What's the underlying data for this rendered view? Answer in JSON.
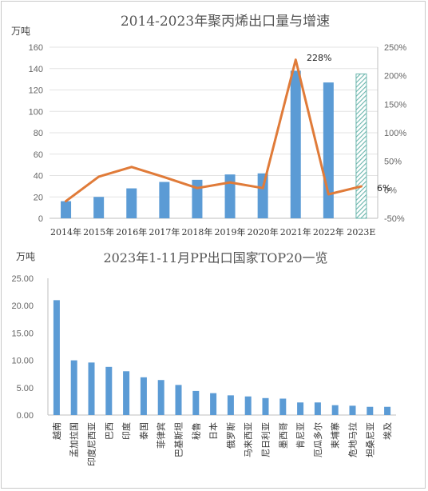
{
  "chart_data": [
    {
      "type": "bar+line",
      "title": "2014-2023年聚丙烯出口量与增速",
      "ylabel": "万吨",
      "categories": [
        "2014年",
        "2015年",
        "2016年",
        "2017年",
        "2018年",
        "2019年",
        "2020年",
        "2021年",
        "2022年",
        "2023E"
      ],
      "bar_values": [
        16,
        20,
        28,
        34,
        36,
        41,
        42,
        138,
        127,
        135
      ],
      "growth_pct": [
        -20,
        23,
        40,
        22,
        3,
        13,
        3,
        228,
        -8,
        6
      ],
      "ylim": [
        0,
        160
      ],
      "yticks": [
        "0",
        "20",
        "40",
        "60",
        "80",
        "100",
        "120",
        "140",
        "160"
      ],
      "y2lim": [
        -50,
        250
      ],
      "y2ticks": [
        "-50%",
        "0%",
        "50%",
        "100%",
        "150%",
        "200%",
        "250%"
      ],
      "annotations": [
        "228%",
        "6%"
      ],
      "colors": {
        "bar": "#5b9bd5",
        "line": "#e07b39",
        "hatch": "#6ab5ac"
      }
    },
    {
      "type": "bar",
      "title": "2023年1-11月PP出口国家TOP20一览",
      "ylabel": "万吨",
      "categories": [
        "越南",
        "孟加拉国",
        "印度尼西亚",
        "巴西",
        "印度",
        "泰国",
        "菲律宾",
        "巴基斯坦",
        "秘鲁",
        "日本",
        "俄罗斯",
        "马来西亚",
        "尼日利亚",
        "墨西哥",
        "肯尼亚",
        "厄瓜多尔",
        "柬埔寨",
        "危地马拉",
        "坦桑尼亚",
        "埃及"
      ],
      "values": [
        21.0,
        10.0,
        9.6,
        8.8,
        8.0,
        6.9,
        6.4,
        5.5,
        4.4,
        4.0,
        3.6,
        3.4,
        3.1,
        3.0,
        2.3,
        2.3,
        1.8,
        1.7,
        1.5,
        1.5
      ],
      "ylim": [
        0,
        25
      ],
      "yticks": [
        "0.00",
        "5.00",
        "10.00",
        "15.00",
        "20.00",
        "25.00"
      ],
      "colors": {
        "bar": "#5b9bd5"
      }
    }
  ]
}
